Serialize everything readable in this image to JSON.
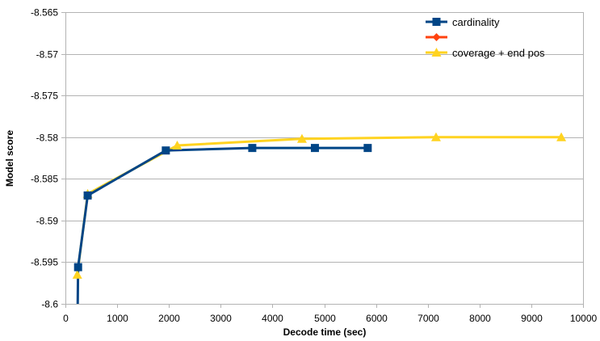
{
  "chart_data": {
    "type": "line",
    "title": "",
    "xlabel": "Decode time (sec)",
    "ylabel": "Model score",
    "xlim": [
      0,
      10000
    ],
    "ylim": [
      -8.6,
      -8.565
    ],
    "x_ticks": [
      "0",
      "1000",
      "2000",
      "3000",
      "4000",
      "5000",
      "6000",
      "7000",
      "8000",
      "9000",
      "10000"
    ],
    "y_ticks": [
      "-8.565",
      "-8.57",
      "-8.575",
      "-8.58",
      "-8.585",
      "-8.59",
      "-8.595",
      "-8.6"
    ],
    "grid": "horizontal",
    "legend_position": "top-right",
    "series": [
      {
        "name": "cardinality",
        "color": "#004586",
        "marker": "square",
        "points": [
          [
            230,
            -8.605
          ],
          [
            245,
            -8.5956
          ],
          [
            430,
            -8.587
          ],
          [
            1940,
            -8.5816
          ],
          [
            3610,
            -8.5813
          ],
          [
            4820,
            -8.5813
          ],
          [
            5840,
            -8.5813
          ]
        ]
      },
      {
        "name": "",
        "color": "#ff420e",
        "marker": "diamond",
        "points": []
      },
      {
        "name": "coverage + end pos",
        "color": "#ffd320",
        "marker": "triangle",
        "points": [
          [
            230,
            -8.5965
          ],
          [
            430,
            -8.5868
          ],
          [
            2160,
            -8.581
          ],
          [
            4570,
            -8.5802
          ],
          [
            7160,
            -8.58
          ],
          [
            9580,
            -8.58
          ]
        ]
      }
    ]
  }
}
